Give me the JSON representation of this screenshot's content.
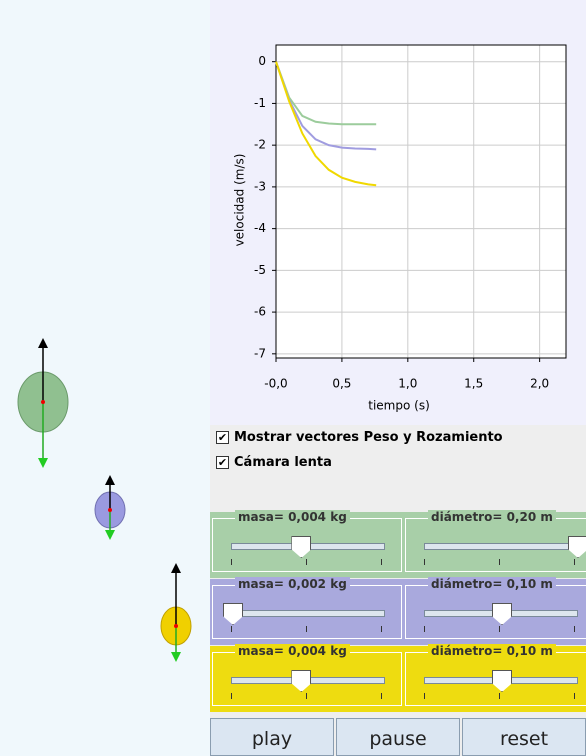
{
  "chart_data": {
    "type": "line",
    "x_label": "tiempo (s)",
    "y_label": "velocidad (m/s)",
    "x": [
      0,
      0.1,
      0.2,
      0.3,
      0.4,
      0.5,
      0.6,
      0.7,
      0.76
    ],
    "series": [
      {
        "color": "#9ccc9c",
        "values": [
          0,
          -0.86,
          -1.3,
          -1.44,
          -1.48,
          -1.5,
          -1.5,
          -1.5,
          -1.5
        ]
      },
      {
        "color": "#a09ce0",
        "values": [
          0,
          -0.92,
          -1.54,
          -1.86,
          -2.0,
          -2.06,
          -2.08,
          -2.09,
          -2.1
        ]
      },
      {
        "color": "#f0d800",
        "values": [
          0,
          -0.95,
          -1.72,
          -2.26,
          -2.59,
          -2.78,
          -2.88,
          -2.94,
          -2.96
        ]
      }
    ],
    "xlim": [
      0,
      2.2
    ],
    "ylim": [
      -7.1,
      0.4
    ],
    "xticks": [
      {
        "value": 0,
        "label": "-0,0"
      },
      {
        "value": 0.5,
        "label": "0,5"
      },
      {
        "value": 1,
        "label": "1,0"
      },
      {
        "value": 1.5,
        "label": "1,5"
      },
      {
        "value": 2,
        "label": "2,0"
      }
    ],
    "yticks": [
      0,
      -1,
      -2,
      -3,
      -4,
      -5,
      -6,
      -7
    ],
    "grid": true
  },
  "controls": {
    "checkboxes": [
      {
        "label": "Mostrar vectores Peso y Rozamiento",
        "checked": true
      },
      {
        "label": "Cámara lenta",
        "checked": true
      }
    ],
    "sliders": [
      {
        "masa": "masa= 0,004 kg",
        "diametro": "diámetro= 0,20 m"
      },
      {
        "masa": "masa= 0,002 kg",
        "diametro": "diámetro= 0,10 m"
      },
      {
        "masa": "masa= 0,004 kg",
        "diametro": "diámetro= 0,10 m"
      }
    ],
    "buttons": [
      "play",
      "pause",
      "reset"
    ]
  }
}
